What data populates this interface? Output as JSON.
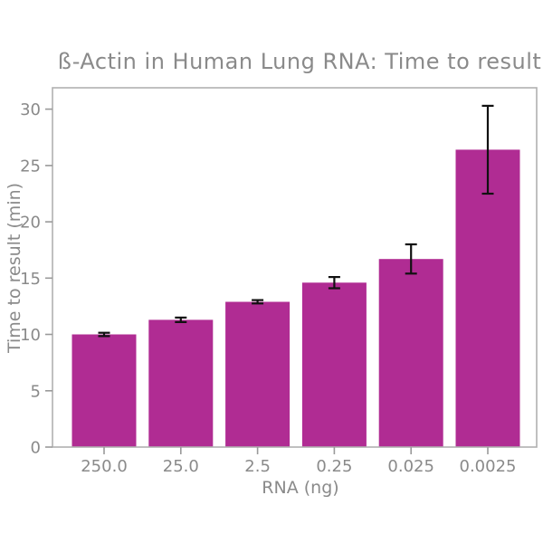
{
  "chart_data": {
    "type": "bar",
    "title": "ß-Actin in Human Lung RNA: Time to result",
    "xlabel": "RNA (ng)",
    "ylabel": "Time to result (min)",
    "categories": [
      "250.0",
      "25.0",
      "2.5",
      "0.25",
      "0.025",
      "0.0025"
    ],
    "series": [
      {
        "name": "Time to result",
        "values": [
          10.0,
          11.3,
          12.9,
          14.6,
          16.7,
          26.4
        ],
        "errors": [
          0.15,
          0.2,
          0.15,
          0.5,
          1.3,
          3.9
        ]
      }
    ],
    "yticks": [
      0,
      5,
      10,
      15,
      20,
      25,
      30
    ],
    "ylim": [
      0,
      31.9
    ],
    "grid": false,
    "legend_position": "none",
    "bar_color": "#b02c93",
    "error_bar_color": "#111111",
    "text_color": "#8a8a8a",
    "spine_color": "#b0b0b0",
    "tick_color": "#9a9a9a",
    "background_color": "#ffffff"
  }
}
